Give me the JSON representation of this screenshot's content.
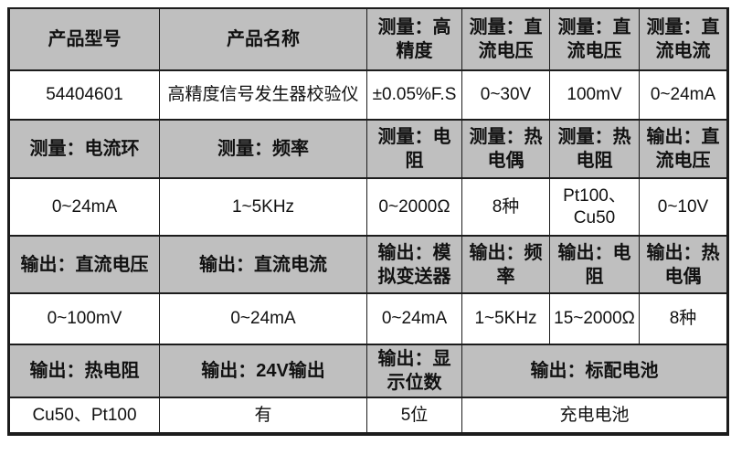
{
  "colors": {
    "header_bg": "#bfbfbf",
    "row_bg": "#ffffff",
    "border": "#1c1c1c",
    "text": "#111111",
    "page_bg": "#ffffff"
  },
  "table": {
    "rows": [
      {
        "kind": "header",
        "cells": [
          {
            "text": "产品型号"
          },
          {
            "text": "产品名称"
          },
          {
            "text": "测量：高精度"
          },
          {
            "text": "测量：直流电压"
          },
          {
            "text": "测量：直流电压"
          },
          {
            "text": "测量：直流电流"
          }
        ]
      },
      {
        "kind": "value",
        "cells": [
          {
            "text": "54404601"
          },
          {
            "text": "高精度信号发生器校验仪"
          },
          {
            "text": "±0.05%F.S"
          },
          {
            "text": "0~30V"
          },
          {
            "text": "100mV"
          },
          {
            "text": "0~24mA"
          }
        ]
      },
      {
        "kind": "header",
        "cells": [
          {
            "text": "测量：电流环"
          },
          {
            "text": "测量：频率"
          },
          {
            "text": "测量：电阻"
          },
          {
            "text": "测量：热电偶"
          },
          {
            "text": "测量：热电阻"
          },
          {
            "text": "输出：直流电压"
          }
        ]
      },
      {
        "kind": "value",
        "cells": [
          {
            "text": "0~24mA"
          },
          {
            "text": "1~5KHz"
          },
          {
            "text": "0~2000Ω"
          },
          {
            "text": "8种"
          },
          {
            "text": "Pt100、Cu50"
          },
          {
            "text": "0~10V"
          }
        ]
      },
      {
        "kind": "header",
        "cells": [
          {
            "text": "输出：直流电压"
          },
          {
            "text": "输出：直流电流"
          },
          {
            "text": "输出：模拟变送器"
          },
          {
            "text": "输出：频率"
          },
          {
            "text": "输出：电阻"
          },
          {
            "text": "输出：热电偶"
          }
        ]
      },
      {
        "kind": "value",
        "cells": [
          {
            "text": "0~100mV"
          },
          {
            "text": "0~24mA"
          },
          {
            "text": "0~24mA"
          },
          {
            "text": "1~5KHz"
          },
          {
            "text": "15~2000Ω"
          },
          {
            "text": "8种"
          }
        ]
      },
      {
        "kind": "header",
        "cells": [
          {
            "text": "输出：热电阻"
          },
          {
            "text": "输出：24V输出"
          },
          {
            "text": "输出：显示位数"
          },
          {
            "text": "输出：标配电池",
            "colspan": 3
          }
        ]
      },
      {
        "kind": "value",
        "cells": [
          {
            "text": "Cu50、Pt100"
          },
          {
            "text": "有"
          },
          {
            "text": "5位"
          },
          {
            "text": "充电电池",
            "colspan": 3
          }
        ]
      }
    ]
  }
}
